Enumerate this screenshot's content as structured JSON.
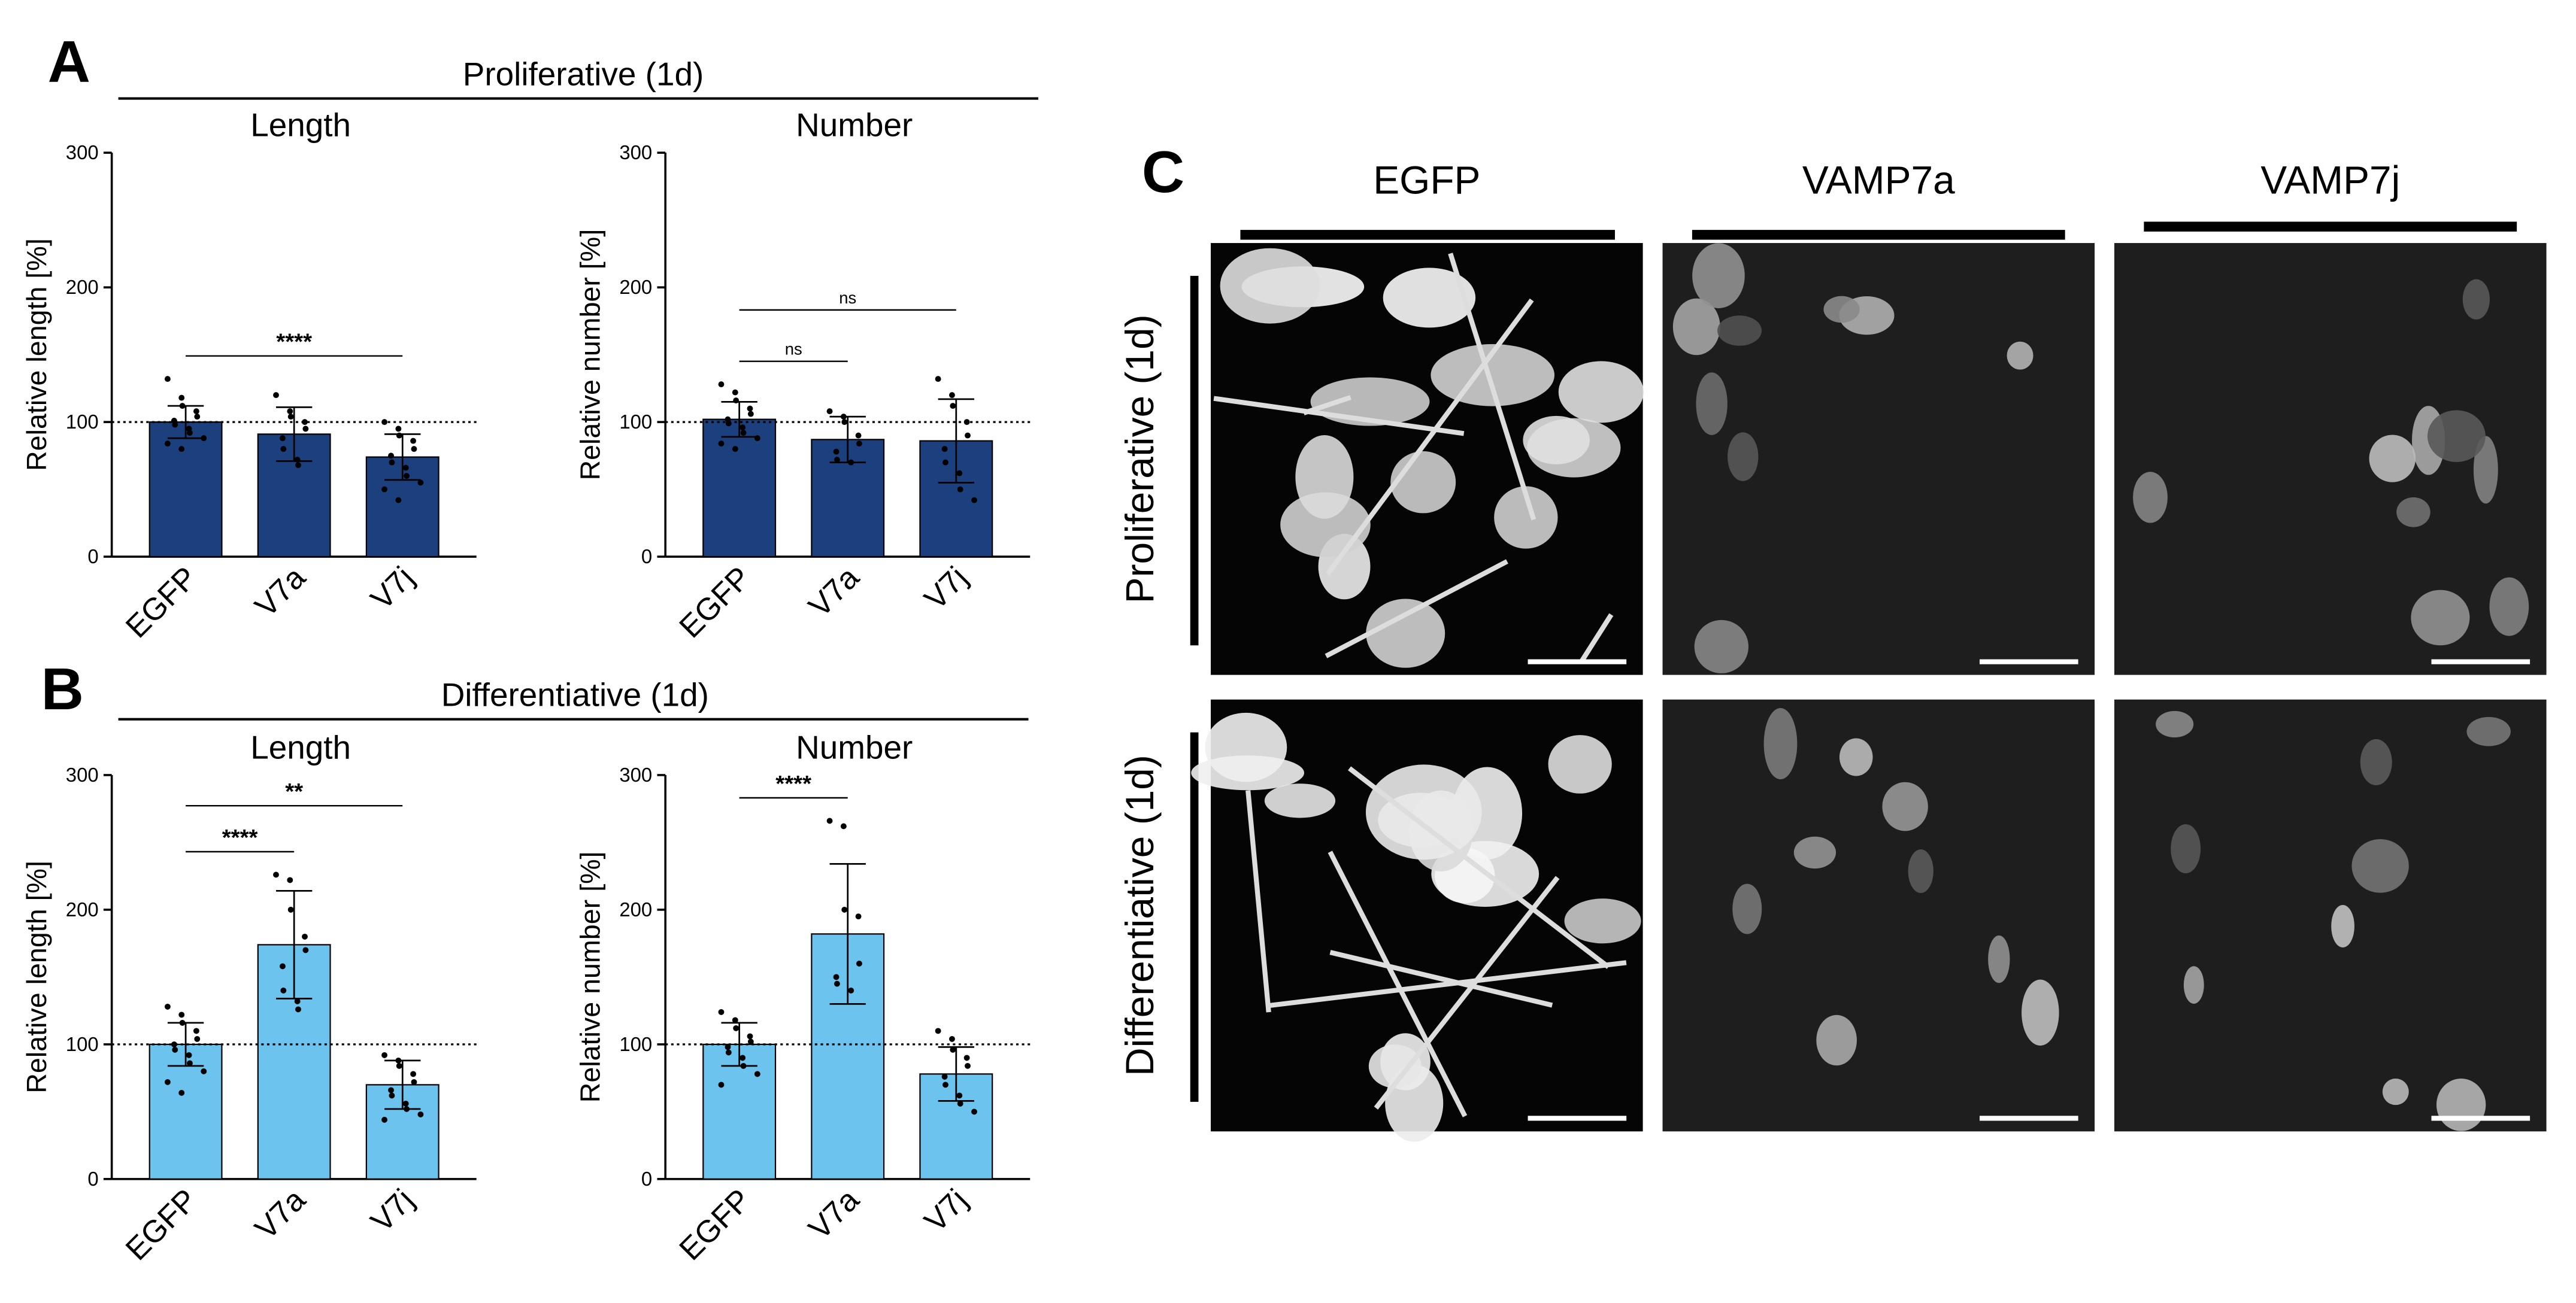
{
  "panels": [
    {
      "letter": "A",
      "title": "Proliferative (1d)"
    },
    {
      "letter": "B",
      "title": "Differentiative (1d)"
    },
    {
      "letter": "C"
    }
  ],
  "chart_data": [
    {
      "type": "bar",
      "title": "Length",
      "ylabel": "Relative length [%]",
      "categories": [
        "EGFP",
        "V7a",
        "V7j"
      ],
      "values": [
        100,
        91,
        74
      ],
      "errors": [
        12,
        20,
        17
      ],
      "points": [
        [
          132,
          118,
          112,
          108,
          104,
          101,
          98,
          95,
          92,
          88,
          84,
          80
        ],
        [
          120,
          108,
          104,
          100,
          95,
          88,
          80,
          72,
          68
        ],
        [
          100,
          95,
          90,
          86,
          80,
          75,
          70,
          66,
          60,
          55,
          50,
          42
        ]
      ],
      "color": "#1c3f7d",
      "ylim": [
        0,
        300
      ],
      "yticks": [
        0,
        100,
        200,
        300
      ],
      "reference_line": 100,
      "annotations": [
        {
          "label": "****",
          "between": [
            "EGFP",
            "V7j"
          ]
        }
      ]
    },
    {
      "type": "bar",
      "title": "Number",
      "ylabel": "Relative number [%]",
      "categories": [
        "EGFP",
        "V7a",
        "V7j"
      ],
      "values": [
        102,
        87,
        86
      ],
      "errors": [
        13,
        17,
        31
      ],
      "points": [
        [
          128,
          122,
          116,
          110,
          106,
          102,
          99,
          96,
          92,
          88,
          84,
          80
        ],
        [
          108,
          104,
          100,
          90,
          84,
          78,
          72,
          70
        ],
        [
          132,
          120,
          112,
          100,
          90,
          80,
          70,
          62,
          50,
          42
        ]
      ],
      "color": "#1c3f7d",
      "ylim": [
        0,
        300
      ],
      "yticks": [
        0,
        100,
        200,
        300
      ],
      "reference_line": 100,
      "annotations": [
        {
          "label": "ns",
          "between": [
            "EGFP",
            "V7a"
          ]
        },
        {
          "label": "ns",
          "between": [
            "EGFP",
            "V7j"
          ]
        }
      ]
    },
    {
      "type": "bar",
      "title": "Length",
      "ylabel": "Relative length [%]",
      "categories": [
        "EGFP",
        "V7a",
        "V7j"
      ],
      "values": [
        100,
        174,
        70
      ],
      "errors": [
        16,
        40,
        18
      ],
      "points": [
        [
          128,
          122,
          116,
          110,
          104,
          100,
          96,
          92,
          86,
          80,
          72,
          64
        ],
        [
          226,
          222,
          200,
          180,
          170,
          158,
          140,
          132,
          126
        ],
        [
          92,
          88,
          84,
          78,
          72,
          66,
          62,
          56,
          52,
          48,
          44
        ]
      ],
      "color": "#6cc3ee",
      "ylim": [
        0,
        300
      ],
      "yticks": [
        0,
        100,
        200,
        300
      ],
      "reference_line": 100,
      "annotations": [
        {
          "label": "****",
          "between": [
            "EGFP",
            "V7a"
          ]
        },
        {
          "label": "**",
          "between": [
            "EGFP",
            "V7j"
          ]
        }
      ]
    },
    {
      "type": "bar",
      "title": "Number",
      "ylabel": "Relative number [%]",
      "categories": [
        "EGFP",
        "V7a",
        "V7j"
      ],
      "values": [
        100,
        182,
        78
      ],
      "errors": [
        16,
        52,
        20
      ],
      "points": [
        [
          124,
          118,
          112,
          106,
          102,
          98,
          94,
          90,
          84,
          78,
          70
        ],
        [
          266,
          262,
          200,
          195,
          160,
          150,
          145,
          140
        ],
        [
          110,
          104,
          96,
          90,
          84,
          76,
          70,
          62,
          56,
          50
        ]
      ],
      "color": "#6cc3ee",
      "ylim": [
        0,
        300
      ],
      "yticks": [
        0,
        100,
        200,
        300
      ],
      "reference_line": 100,
      "annotations": [
        {
          "label": "****",
          "between": [
            "EGFP",
            "V7a"
          ]
        }
      ]
    }
  ],
  "images": {
    "columns": [
      "EGFP",
      "VAMP7a",
      "VAMP7j"
    ],
    "rows": [
      "Proliferative (1d)",
      "Differentiative (1d)"
    ]
  }
}
